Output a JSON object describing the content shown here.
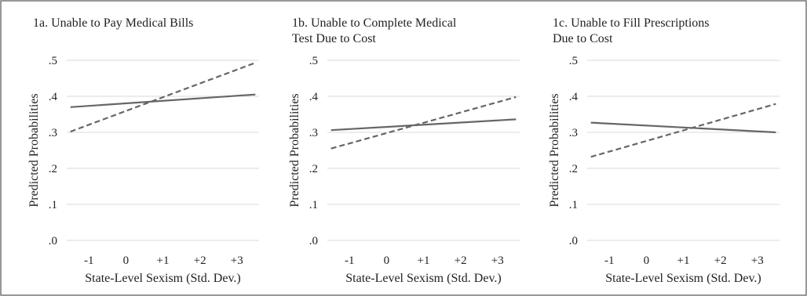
{
  "chart_data": [
    {
      "type": "line",
      "title": [
        "1a. Unable to Pay Medical Bills"
      ],
      "xlabel": "State-Level Sexism (Std. Dev.)",
      "ylabel": "Predicted Probabilities",
      "xticks": [
        -1,
        0,
        1,
        2,
        3
      ],
      "xtick_labels": [
        "-1",
        "0",
        "+1",
        "+2",
        "+3"
      ],
      "xlim": [
        -1.6,
        3.6
      ],
      "yticks": [
        0,
        0.1,
        0.2,
        0.3,
        0.4,
        0.5
      ],
      "ytick_labels": [
        ".0",
        ".1",
        ".2",
        ".3",
        ".4",
        ".5"
      ],
      "ylim": [
        0,
        0.5
      ],
      "grid": true,
      "series": [
        {
          "style": "solid",
          "color": "#666666",
          "x": [
            -1.5,
            3.5
          ],
          "y": [
            0.37,
            0.405
          ]
        },
        {
          "style": "dashed",
          "color": "#666666",
          "x": [
            -1.5,
            3.5
          ],
          "y": [
            0.302,
            0.493
          ]
        }
      ]
    },
    {
      "type": "line",
      "title": [
        "1b. Unable to Complete Medical",
        "Test Due to Cost"
      ],
      "xlabel": "State-Level Sexism (Std. Dev.)",
      "ylabel": "Predicted Probabilities",
      "xticks": [
        -1,
        0,
        1,
        2,
        3
      ],
      "xtick_labels": [
        "-1",
        "0",
        "+1",
        "+2",
        "+3"
      ],
      "xlim": [
        -1.6,
        3.6
      ],
      "yticks": [
        0,
        0.1,
        0.2,
        0.3,
        0.4,
        0.5
      ],
      "ytick_labels": [
        ".0",
        ".1",
        ".2",
        ".3",
        ".4",
        ".5"
      ],
      "ylim": [
        0,
        0.5
      ],
      "grid": true,
      "series": [
        {
          "style": "solid",
          "color": "#666666",
          "x": [
            -1.5,
            3.5
          ],
          "y": [
            0.306,
            0.336
          ]
        },
        {
          "style": "dashed",
          "color": "#666666",
          "x": [
            -1.5,
            3.5
          ],
          "y": [
            0.255,
            0.398
          ]
        }
      ]
    },
    {
      "type": "line",
      "title": [
        "1c. Unable to Fill Prescriptions",
        "Due to Cost"
      ],
      "xlabel": "State-Level Sexism (Std. Dev.)",
      "ylabel": "Predicted Probabilities",
      "xticks": [
        -1,
        0,
        1,
        2,
        3
      ],
      "xtick_labels": [
        "-1",
        "0",
        "+1",
        "+2",
        "+3"
      ],
      "xlim": [
        -1.6,
        3.6
      ],
      "yticks": [
        0,
        0.1,
        0.2,
        0.3,
        0.4,
        0.5
      ],
      "ytick_labels": [
        ".0",
        ".1",
        ".2",
        ".3",
        ".4",
        ".5"
      ],
      "ylim": [
        0,
        0.5
      ],
      "grid": true,
      "series": [
        {
          "style": "solid",
          "color": "#666666",
          "x": [
            -1.5,
            3.5
          ],
          "y": [
            0.327,
            0.3
          ]
        },
        {
          "style": "dashed",
          "color": "#666666",
          "x": [
            -1.5,
            3.5
          ],
          "y": [
            0.232,
            0.379
          ]
        }
      ]
    }
  ]
}
